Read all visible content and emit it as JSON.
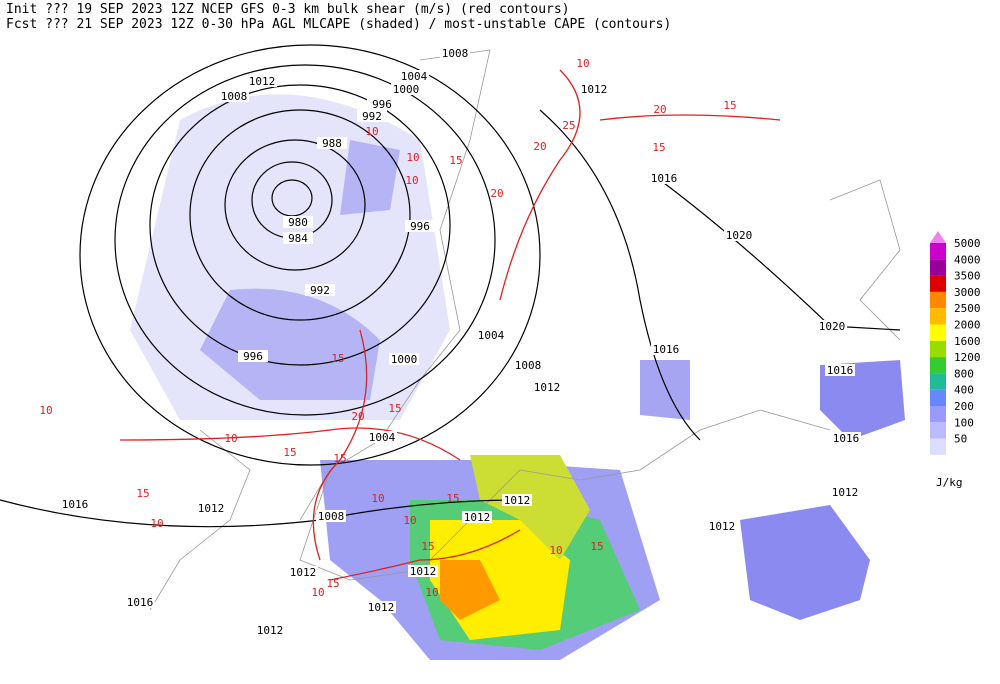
{
  "header": {
    "line1": "Init  ??? 19 SEP 2023 12Z  NCEP GFS 0-3 km bulk shear (m/s) (red contours)",
    "line2": "Fcst ??? 21 SEP 2023 12Z  0-30 hPa AGL MLCAPE (shaded) / most-unstable CAPE (contours)"
  },
  "legend": {
    "unit": "J/kg",
    "levels": [
      "5000",
      "4000",
      "3500",
      "3000",
      "2500",
      "2000",
      "1600",
      "1200",
      "800",
      "400",
      "200",
      "100",
      "50"
    ],
    "colors": [
      "#ee82ee",
      "#cc00cc",
      "#990099",
      "#dd0000",
      "#ff8800",
      "#ffbb00",
      "#ffff00",
      "#99dd00",
      "#33cc33",
      "#22bb99",
      "#6688ff",
      "#9999ff",
      "#bbbbff",
      "#ddddff"
    ]
  },
  "isobar_labels": [
    "1008",
    "1012",
    "1008",
    "1004",
    "1000",
    "996",
    "992",
    "988",
    "980",
    "984",
    "996",
    "992",
    "996",
    "1000",
    "1004",
    "1008",
    "1012",
    "1004",
    "1012",
    "1016",
    "1020",
    "1020",
    "1016",
    "1016",
    "1016",
    "1012",
    "1016",
    "1012",
    "1008",
    "1012",
    "1012",
    "1012",
    "1012",
    "1012",
    "1012",
    "1016",
    "1012"
  ],
  "shear_labels": [
    "10",
    "20",
    "15",
    "25",
    "15",
    "10",
    "10",
    "15",
    "20",
    "10",
    "20",
    "15",
    "20",
    "15",
    "10",
    "15",
    "15",
    "10",
    "15",
    "10",
    "15",
    "15",
    "10",
    "10",
    "15",
    "10",
    "10",
    "15",
    "10"
  ]
}
